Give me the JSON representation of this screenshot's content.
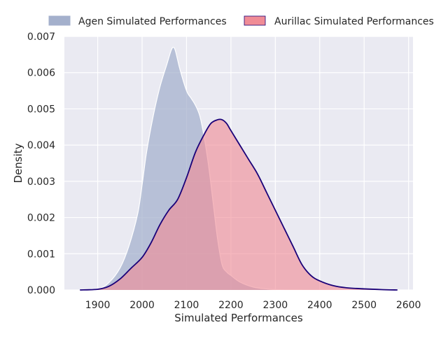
{
  "chart_data": {
    "type": "area",
    "title": "",
    "xlabel": "Simulated Performances",
    "ylabel": "Density",
    "xlim": [
      1825,
      2610
    ],
    "ylim": [
      0,
      0.007
    ],
    "xticks": [
      1900,
      2000,
      2100,
      2200,
      2300,
      2400,
      2500,
      2600
    ],
    "yticks": [
      0,
      0.001,
      0.002,
      0.003,
      0.004,
      0.005,
      0.006,
      0.007
    ],
    "ytick_labels": [
      "0.000",
      "0.001",
      "0.002",
      "0.003",
      "0.004",
      "0.005",
      "0.006",
      "0.007"
    ],
    "grid": true,
    "legend_position": "top",
    "colors": {
      "background": "#eaeaf2",
      "grid": "#ffffff",
      "agen_fill": "#a4b0cc",
      "agen_edge": "#ffffff",
      "aurillac_fill": "#f08c96",
      "aurillac_edge": "#1a0078"
    },
    "series": [
      {
        "name": "Agen Simulated Performances",
        "x": [
          1860,
          1900,
          1925,
          1950,
          1970,
          1990,
          2000,
          2010,
          2025,
          2040,
          2055,
          2065,
          2070,
          2075,
          2085,
          2100,
          2110,
          2120,
          2130,
          2140,
          2150,
          2160,
          2170,
          2180,
          2190,
          2200,
          2220,
          2250,
          2280,
          2300,
          2330,
          2360
        ],
        "values": [
          0,
          3e-05,
          0.0002,
          0.0006,
          0.0012,
          0.0021,
          0.0029,
          0.0038,
          0.0048,
          0.0056,
          0.0062,
          0.0066,
          0.0067,
          0.0066,
          0.0061,
          0.0055,
          0.0053,
          0.0051,
          0.0048,
          0.0042,
          0.0034,
          0.0024,
          0.0014,
          0.0007,
          0.0005,
          0.0004,
          0.00022,
          8e-05,
          3e-05,
          1e-05,
          0,
          0
        ]
      },
      {
        "name": "Aurillac Simulated Performances",
        "x": [
          1860,
          1900,
          1925,
          1950,
          1975,
          2000,
          2020,
          2040,
          2060,
          2080,
          2100,
          2120,
          2140,
          2155,
          2170,
          2180,
          2190,
          2200,
          2220,
          2240,
          2260,
          2280,
          2300,
          2320,
          2340,
          2360,
          2380,
          2400,
          2430,
          2460,
          2500,
          2540,
          2575
        ],
        "values": [
          0,
          2e-05,
          0.0001,
          0.0003,
          0.0006,
          0.0009,
          0.0013,
          0.0018,
          0.0022,
          0.0025,
          0.0031,
          0.0038,
          0.0043,
          0.0046,
          0.0047,
          0.0047,
          0.0046,
          0.0044,
          0.004,
          0.0036,
          0.0032,
          0.0027,
          0.0022,
          0.0017,
          0.0012,
          0.0007,
          0.0004,
          0.00025,
          0.00012,
          6e-05,
          3e-05,
          1e-05,
          0
        ]
      }
    ]
  }
}
